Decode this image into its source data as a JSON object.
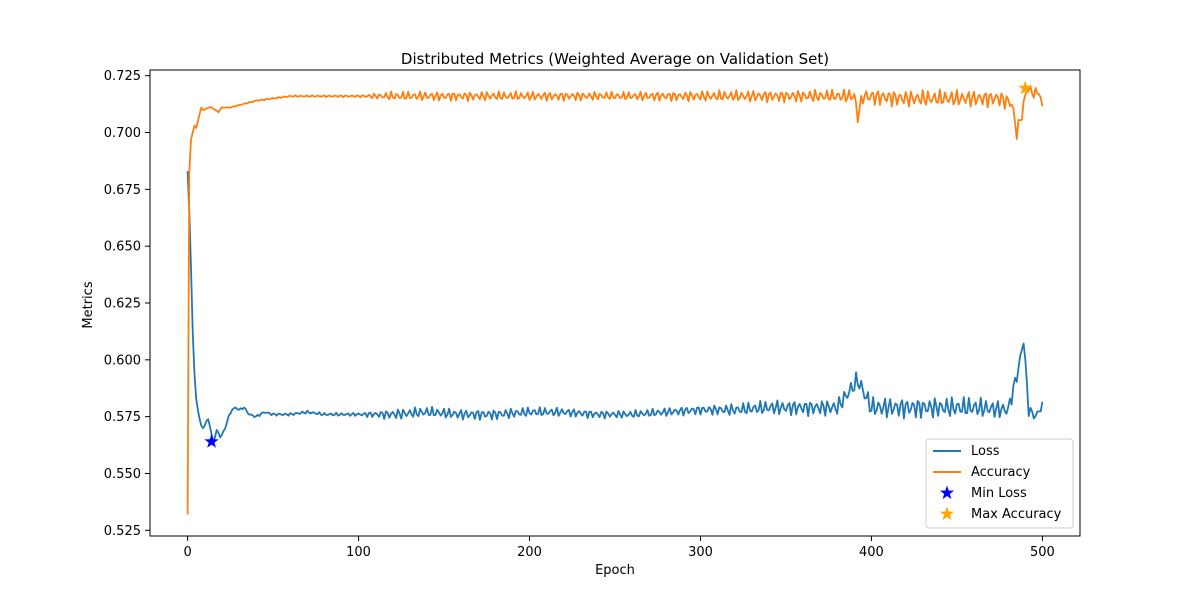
{
  "chart_data": {
    "type": "line",
    "title": "Distributed Metrics (Weighted Average on Validation Set)",
    "xlabel": "Epoch",
    "ylabel": "Metrics",
    "xlim": [
      -22,
      522
    ],
    "ylim": [
      0.5225,
      0.7275
    ],
    "x_ticks": [
      0,
      100,
      200,
      300,
      400,
      500
    ],
    "y_ticks": [
      0.525,
      0.55,
      0.575,
      0.6,
      0.625,
      0.65,
      0.675,
      0.7,
      0.725
    ],
    "grid": false,
    "legend_position": "lower-right",
    "series": [
      {
        "name": "Loss",
        "color": "#1f77b4",
        "points": [
          [
            0,
            0.683
          ],
          [
            1,
            0.665
          ],
          [
            2,
            0.64
          ],
          [
            3,
            0.612
          ],
          [
            4,
            0.594
          ],
          [
            5,
            0.583
          ],
          [
            6,
            0.578
          ],
          [
            7,
            0.574
          ],
          [
            8,
            0.571
          ],
          [
            9,
            0.57
          ],
          [
            10,
            0.571
          ],
          [
            11,
            0.573
          ],
          [
            12,
            0.574
          ],
          [
            13,
            0.571
          ],
          [
            14,
            0.567
          ],
          [
            15,
            0.564
          ],
          [
            16,
            0.566
          ],
          [
            17,
            0.569
          ],
          [
            18,
            0.568
          ],
          [
            19,
            0.566
          ],
          [
            20,
            0.567
          ],
          [
            22,
            0.57
          ],
          [
            24,
            0.575
          ],
          [
            26,
            0.578
          ],
          [
            28,
            0.579
          ],
          [
            30,
            0.578
          ],
          [
            33,
            0.579
          ],
          [
            36,
            0.576
          ],
          [
            40,
            0.575
          ],
          [
            45,
            0.577
          ],
          [
            50,
            0.576
          ],
          [
            60,
            0.576
          ],
          [
            70,
            0.577
          ],
          [
            80,
            0.576
          ],
          [
            90,
            0.576
          ],
          [
            100,
            0.576
          ],
          [
            120,
            0.576
          ],
          [
            140,
            0.577
          ],
          [
            160,
            0.576
          ],
          [
            180,
            0.576
          ],
          [
            200,
            0.577
          ],
          [
            220,
            0.577
          ],
          [
            240,
            0.576
          ],
          [
            260,
            0.576
          ],
          [
            280,
            0.577
          ],
          [
            300,
            0.578
          ],
          [
            320,
            0.578
          ],
          [
            340,
            0.579
          ],
          [
            360,
            0.579
          ],
          [
            380,
            0.579
          ],
          [
            392,
            0.591
          ],
          [
            400,
            0.579
          ],
          [
            420,
            0.579
          ],
          [
            440,
            0.579
          ],
          [
            460,
            0.579
          ],
          [
            480,
            0.578
          ],
          [
            486,
            0.596
          ],
          [
            489,
            0.609
          ],
          [
            492,
            0.578
          ],
          [
            496,
            0.575
          ],
          [
            500,
            0.58
          ]
        ],
        "oscillation": [
          [
            0,
            0
          ],
          [
            40,
            0.0006
          ],
          [
            100,
            0.0008
          ],
          [
            120,
            0.0025
          ],
          [
            180,
            0.0025
          ],
          [
            250,
            0.0018
          ],
          [
            300,
            0.0022
          ],
          [
            340,
            0.0035
          ],
          [
            380,
            0.004
          ],
          [
            400,
            0.005
          ],
          [
            460,
            0.005
          ],
          [
            480,
            0.004
          ],
          [
            500,
            0.002
          ]
        ]
      },
      {
        "name": "Accuracy",
        "color": "#ff7f0e",
        "points": [
          [
            0,
            0.532
          ],
          [
            1,
            0.683
          ],
          [
            2,
            0.697
          ],
          [
            3,
            0.7
          ],
          [
            4,
            0.703
          ],
          [
            5,
            0.702
          ],
          [
            6,
            0.705
          ],
          [
            7,
            0.708
          ],
          [
            8,
            0.711
          ],
          [
            9,
            0.71
          ],
          [
            10,
            0.71
          ],
          [
            12,
            0.711
          ],
          [
            14,
            0.711
          ],
          [
            16,
            0.71
          ],
          [
            18,
            0.709
          ],
          [
            20,
            0.711
          ],
          [
            25,
            0.711
          ],
          [
            30,
            0.712
          ],
          [
            40,
            0.714
          ],
          [
            50,
            0.715
          ],
          [
            60,
            0.716
          ],
          [
            70,
            0.716
          ],
          [
            80,
            0.716
          ],
          [
            90,
            0.716
          ],
          [
            100,
            0.716
          ],
          [
            120,
            0.716
          ],
          [
            140,
            0.716
          ],
          [
            160,
            0.716
          ],
          [
            180,
            0.716
          ],
          [
            200,
            0.716
          ],
          [
            220,
            0.716
          ],
          [
            250,
            0.716
          ],
          [
            280,
            0.716
          ],
          [
            300,
            0.716
          ],
          [
            330,
            0.716
          ],
          [
            360,
            0.716
          ],
          [
            390,
            0.716
          ],
          [
            392,
            0.707
          ],
          [
            395,
            0.716
          ],
          [
            420,
            0.715
          ],
          [
            450,
            0.715
          ],
          [
            475,
            0.715
          ],
          [
            482,
            0.713
          ],
          [
            485,
            0.7
          ],
          [
            488,
            0.708
          ],
          [
            491,
            0.72
          ],
          [
            495,
            0.717
          ],
          [
            498,
            0.718
          ],
          [
            500,
            0.711
          ]
        ],
        "oscillation": [
          [
            0,
            0
          ],
          [
            40,
            0.0003
          ],
          [
            100,
            0.0005
          ],
          [
            120,
            0.0022
          ],
          [
            200,
            0.0022
          ],
          [
            250,
            0.002
          ],
          [
            300,
            0.0025
          ],
          [
            330,
            0.0028
          ],
          [
            380,
            0.003
          ],
          [
            400,
            0.004
          ],
          [
            480,
            0.004
          ],
          [
            500,
            0.002
          ]
        ]
      }
    ],
    "markers": [
      {
        "name": "Min Loss",
        "x": 14,
        "y": 0.564,
        "color": "#0000ff"
      },
      {
        "name": "Max Accuracy",
        "x": 490,
        "y": 0.7195,
        "color": "#ffa500"
      }
    ]
  }
}
